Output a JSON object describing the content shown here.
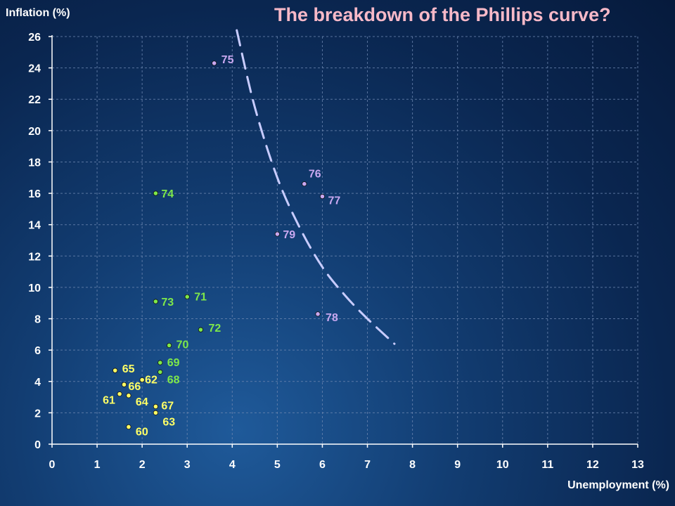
{
  "chart_data": {
    "type": "scatter",
    "title": "The breakdown of the Phillips curve?",
    "xlabel": "Unemployment (%)",
    "ylabel": "Inflation (%)",
    "xlim": [
      0,
      13
    ],
    "ylim": [
      0,
      26
    ],
    "x_ticks": [
      "0",
      "1",
      "2",
      "3",
      "4",
      "5",
      "6",
      "7",
      "8",
      "9",
      "10",
      "11",
      "12",
      "13"
    ],
    "y_ticks": [
      "0",
      "2",
      "4",
      "6",
      "8",
      "10",
      "12",
      "14",
      "16",
      "18",
      "20",
      "22",
      "24",
      "26"
    ],
    "grid": "dashed",
    "series": [
      {
        "color": "#ffff66",
        "points": [
          {
            "label": "60",
            "x": 1.7,
            "y": 1.1
          },
          {
            "label": "61",
            "x": 1.5,
            "y": 3.2
          },
          {
            "label": "62",
            "x": 2.0,
            "y": 4.1
          },
          {
            "label": "63",
            "x": 2.3,
            "y": 2.0
          },
          {
            "label": "64",
            "x": 1.7,
            "y": 3.1
          },
          {
            "label": "65",
            "x": 1.4,
            "y": 4.7
          },
          {
            "label": "66",
            "x": 1.6,
            "y": 3.8
          },
          {
            "label": "67",
            "x": 2.3,
            "y": 2.4
          }
        ]
      },
      {
        "color": "#7ee84a",
        "points": [
          {
            "label": "68",
            "x": 2.4,
            "y": 4.6
          },
          {
            "label": "69",
            "x": 2.4,
            "y": 5.2
          },
          {
            "label": "70",
            "x": 2.6,
            "y": 6.3
          },
          {
            "label": "71",
            "x": 3.0,
            "y": 9.4
          },
          {
            "label": "72",
            "x": 3.3,
            "y": 7.3
          },
          {
            "label": "73",
            "x": 2.3,
            "y": 9.1
          },
          {
            "label": "74",
            "x": 2.3,
            "y": 16.0
          }
        ]
      },
      {
        "color": "#c9a8f0",
        "points": [
          {
            "label": "75",
            "x": 3.6,
            "y": 24.3
          },
          {
            "label": "76",
            "x": 5.6,
            "y": 16.6
          },
          {
            "label": "77",
            "x": 6.0,
            "y": 15.8
          },
          {
            "label": "78",
            "x": 5.9,
            "y": 8.3
          },
          {
            "label": "79",
            "x": 5.0,
            "y": 13.4
          }
        ]
      }
    ],
    "curve": {
      "style": "dashed",
      "color": "#c8ccff",
      "points": [
        [
          4.1,
          26.4
        ],
        [
          4.5,
          21.5
        ],
        [
          5.0,
          17.0
        ],
        [
          5.5,
          13.8
        ],
        [
          6.0,
          11.3
        ],
        [
          6.5,
          9.5
        ],
        [
          7.0,
          8.0
        ],
        [
          7.6,
          6.4
        ]
      ]
    }
  }
}
